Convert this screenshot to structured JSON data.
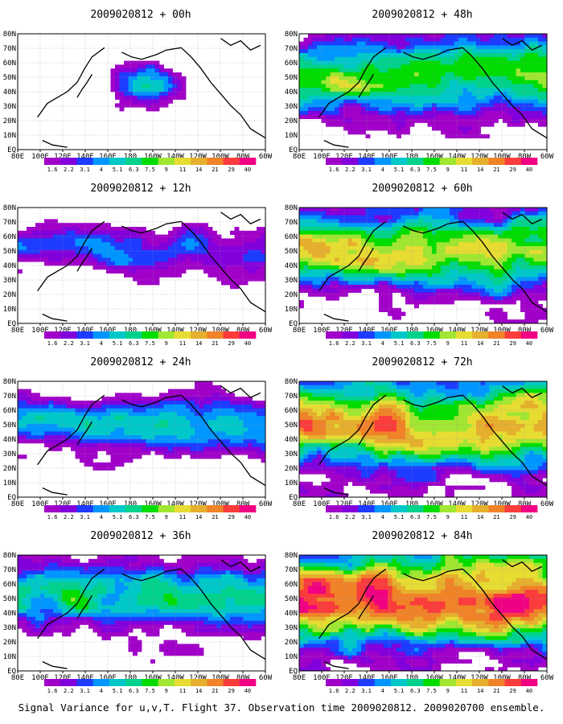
{
  "caption": "Signal Variance for u,v,T. Flight 37. Observation time 2009020812. 2009020700 ensemble.",
  "chart_data": {
    "type": "heatmap",
    "region": {
      "lon_range": [
        "80E",
        "60W"
      ],
      "lat_range": [
        "EQ",
        "80N"
      ]
    },
    "x_ticks": [
      "80E",
      "100E",
      "120E",
      "140E",
      "160E",
      "180",
      "160W",
      "140W",
      "120W",
      "100W",
      "80W",
      "60W"
    ],
    "y_ticks": [
      "EQ",
      "10N",
      "20N",
      "30N",
      "40N",
      "50N",
      "60N",
      "70N",
      "80N"
    ],
    "colorbar": {
      "levels": [
        "1.6",
        "2.2",
        "3.1",
        "4",
        "5.1",
        "6.3",
        "7.5",
        "9",
        "11",
        "14",
        "21",
        "29",
        "40"
      ],
      "colors": [
        "#a000c8",
        "#8200dc",
        "#1e3cff",
        "#0096ff",
        "#00c8c8",
        "#00d28c",
        "#00dc00",
        "#a0e632",
        "#e6dc32",
        "#e6af2d",
        "#f08228",
        "#fa3c3c",
        "#f00082"
      ]
    },
    "panels": [
      {
        "title": "2009020812 + 00h",
        "col": 0,
        "row": 0,
        "intensity": 0
      },
      {
        "title": "2009020812 + 12h",
        "col": 0,
        "row": 1,
        "intensity": 1
      },
      {
        "title": "2009020812 + 24h",
        "col": 0,
        "row": 2,
        "intensity": 2
      },
      {
        "title": "2009020812 + 36h",
        "col": 0,
        "row": 3,
        "intensity": 3
      },
      {
        "title": "2009020812 + 48h",
        "col": 1,
        "row": 0,
        "intensity": 4
      },
      {
        "title": "2009020812 + 60h",
        "col": 1,
        "row": 1,
        "intensity": 5
      },
      {
        "title": "2009020812 + 72h",
        "col": 1,
        "row": 2,
        "intensity": 6
      },
      {
        "title": "2009020812 + 84h",
        "col": 1,
        "row": 3,
        "intensity": 7
      }
    ]
  }
}
